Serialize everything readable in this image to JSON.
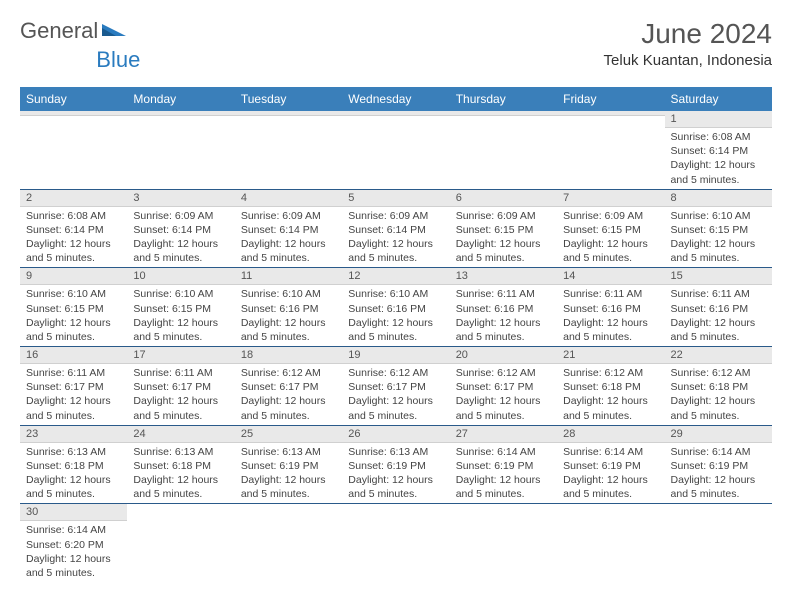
{
  "logo": {
    "general": "General",
    "blue": "Blue"
  },
  "title": "June 2024",
  "location": "Teluk Kuantan, Indonesia",
  "colors": {
    "header_bg": "#3a7fba",
    "header_text": "#ffffff",
    "daynum_bg": "#e9e9e9",
    "row_border": "#2a5a8a",
    "logo_blue": "#2a7bbf",
    "logo_gray": "#555555",
    "text": "#444444"
  },
  "day_headers": [
    "Sunday",
    "Monday",
    "Tuesday",
    "Wednesday",
    "Thursday",
    "Friday",
    "Saturday"
  ],
  "weeks": [
    [
      {
        "n": "",
        "sunrise": "",
        "sunset": "",
        "daylight": ""
      },
      {
        "n": "",
        "sunrise": "",
        "sunset": "",
        "daylight": ""
      },
      {
        "n": "",
        "sunrise": "",
        "sunset": "",
        "daylight": ""
      },
      {
        "n": "",
        "sunrise": "",
        "sunset": "",
        "daylight": ""
      },
      {
        "n": "",
        "sunrise": "",
        "sunset": "",
        "daylight": ""
      },
      {
        "n": "",
        "sunrise": "",
        "sunset": "",
        "daylight": ""
      },
      {
        "n": "1",
        "sunrise": "Sunrise: 6:08 AM",
        "sunset": "Sunset: 6:14 PM",
        "daylight": "Daylight: 12 hours and 5 minutes."
      }
    ],
    [
      {
        "n": "2",
        "sunrise": "Sunrise: 6:08 AM",
        "sunset": "Sunset: 6:14 PM",
        "daylight": "Daylight: 12 hours and 5 minutes."
      },
      {
        "n": "3",
        "sunrise": "Sunrise: 6:09 AM",
        "sunset": "Sunset: 6:14 PM",
        "daylight": "Daylight: 12 hours and 5 minutes."
      },
      {
        "n": "4",
        "sunrise": "Sunrise: 6:09 AM",
        "sunset": "Sunset: 6:14 PM",
        "daylight": "Daylight: 12 hours and 5 minutes."
      },
      {
        "n": "5",
        "sunrise": "Sunrise: 6:09 AM",
        "sunset": "Sunset: 6:14 PM",
        "daylight": "Daylight: 12 hours and 5 minutes."
      },
      {
        "n": "6",
        "sunrise": "Sunrise: 6:09 AM",
        "sunset": "Sunset: 6:15 PM",
        "daylight": "Daylight: 12 hours and 5 minutes."
      },
      {
        "n": "7",
        "sunrise": "Sunrise: 6:09 AM",
        "sunset": "Sunset: 6:15 PM",
        "daylight": "Daylight: 12 hours and 5 minutes."
      },
      {
        "n": "8",
        "sunrise": "Sunrise: 6:10 AM",
        "sunset": "Sunset: 6:15 PM",
        "daylight": "Daylight: 12 hours and 5 minutes."
      }
    ],
    [
      {
        "n": "9",
        "sunrise": "Sunrise: 6:10 AM",
        "sunset": "Sunset: 6:15 PM",
        "daylight": "Daylight: 12 hours and 5 minutes."
      },
      {
        "n": "10",
        "sunrise": "Sunrise: 6:10 AM",
        "sunset": "Sunset: 6:15 PM",
        "daylight": "Daylight: 12 hours and 5 minutes."
      },
      {
        "n": "11",
        "sunrise": "Sunrise: 6:10 AM",
        "sunset": "Sunset: 6:16 PM",
        "daylight": "Daylight: 12 hours and 5 minutes."
      },
      {
        "n": "12",
        "sunrise": "Sunrise: 6:10 AM",
        "sunset": "Sunset: 6:16 PM",
        "daylight": "Daylight: 12 hours and 5 minutes."
      },
      {
        "n": "13",
        "sunrise": "Sunrise: 6:11 AM",
        "sunset": "Sunset: 6:16 PM",
        "daylight": "Daylight: 12 hours and 5 minutes."
      },
      {
        "n": "14",
        "sunrise": "Sunrise: 6:11 AM",
        "sunset": "Sunset: 6:16 PM",
        "daylight": "Daylight: 12 hours and 5 minutes."
      },
      {
        "n": "15",
        "sunrise": "Sunrise: 6:11 AM",
        "sunset": "Sunset: 6:16 PM",
        "daylight": "Daylight: 12 hours and 5 minutes."
      }
    ],
    [
      {
        "n": "16",
        "sunrise": "Sunrise: 6:11 AM",
        "sunset": "Sunset: 6:17 PM",
        "daylight": "Daylight: 12 hours and 5 minutes."
      },
      {
        "n": "17",
        "sunrise": "Sunrise: 6:11 AM",
        "sunset": "Sunset: 6:17 PM",
        "daylight": "Daylight: 12 hours and 5 minutes."
      },
      {
        "n": "18",
        "sunrise": "Sunrise: 6:12 AM",
        "sunset": "Sunset: 6:17 PM",
        "daylight": "Daylight: 12 hours and 5 minutes."
      },
      {
        "n": "19",
        "sunrise": "Sunrise: 6:12 AM",
        "sunset": "Sunset: 6:17 PM",
        "daylight": "Daylight: 12 hours and 5 minutes."
      },
      {
        "n": "20",
        "sunrise": "Sunrise: 6:12 AM",
        "sunset": "Sunset: 6:17 PM",
        "daylight": "Daylight: 12 hours and 5 minutes."
      },
      {
        "n": "21",
        "sunrise": "Sunrise: 6:12 AM",
        "sunset": "Sunset: 6:18 PM",
        "daylight": "Daylight: 12 hours and 5 minutes."
      },
      {
        "n": "22",
        "sunrise": "Sunrise: 6:12 AM",
        "sunset": "Sunset: 6:18 PM",
        "daylight": "Daylight: 12 hours and 5 minutes."
      }
    ],
    [
      {
        "n": "23",
        "sunrise": "Sunrise: 6:13 AM",
        "sunset": "Sunset: 6:18 PM",
        "daylight": "Daylight: 12 hours and 5 minutes."
      },
      {
        "n": "24",
        "sunrise": "Sunrise: 6:13 AM",
        "sunset": "Sunset: 6:18 PM",
        "daylight": "Daylight: 12 hours and 5 minutes."
      },
      {
        "n": "25",
        "sunrise": "Sunrise: 6:13 AM",
        "sunset": "Sunset: 6:19 PM",
        "daylight": "Daylight: 12 hours and 5 minutes."
      },
      {
        "n": "26",
        "sunrise": "Sunrise: 6:13 AM",
        "sunset": "Sunset: 6:19 PM",
        "daylight": "Daylight: 12 hours and 5 minutes."
      },
      {
        "n": "27",
        "sunrise": "Sunrise: 6:14 AM",
        "sunset": "Sunset: 6:19 PM",
        "daylight": "Daylight: 12 hours and 5 minutes."
      },
      {
        "n": "28",
        "sunrise": "Sunrise: 6:14 AM",
        "sunset": "Sunset: 6:19 PM",
        "daylight": "Daylight: 12 hours and 5 minutes."
      },
      {
        "n": "29",
        "sunrise": "Sunrise: 6:14 AM",
        "sunset": "Sunset: 6:19 PM",
        "daylight": "Daylight: 12 hours and 5 minutes."
      }
    ],
    [
      {
        "n": "30",
        "sunrise": "Sunrise: 6:14 AM",
        "sunset": "Sunset: 6:20 PM",
        "daylight": "Daylight: 12 hours and 5 minutes."
      },
      {
        "n": "",
        "sunrise": "",
        "sunset": "",
        "daylight": ""
      },
      {
        "n": "",
        "sunrise": "",
        "sunset": "",
        "daylight": ""
      },
      {
        "n": "",
        "sunrise": "",
        "sunset": "",
        "daylight": ""
      },
      {
        "n": "",
        "sunrise": "",
        "sunset": "",
        "daylight": ""
      },
      {
        "n": "",
        "sunrise": "",
        "sunset": "",
        "daylight": ""
      },
      {
        "n": "",
        "sunrise": "",
        "sunset": "",
        "daylight": ""
      }
    ]
  ]
}
